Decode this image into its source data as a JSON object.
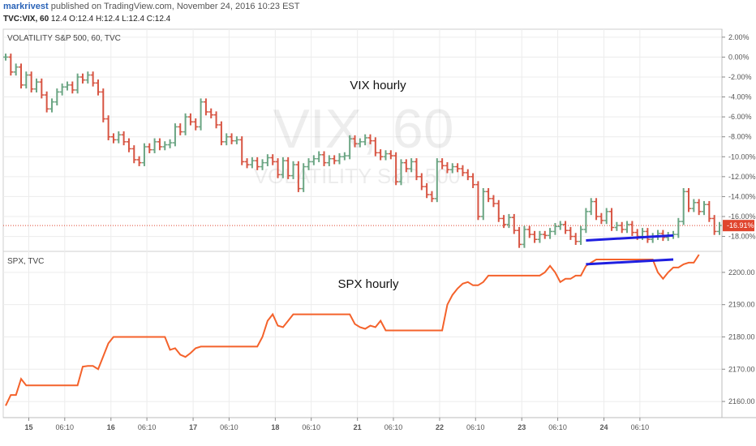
{
  "header": {
    "user": "markrivest",
    "published_text": "published on TradingView.com, November 24, 2016 10:23 EST",
    "symbol": "TVC:VIX, 60",
    "ohlc": "12.4 O:12.4 H:12.4 L:12.4 C:12.4"
  },
  "colors": {
    "up": "#6ba583",
    "down": "#d75442",
    "spx_line": "#f4622b",
    "trend_line": "#1f1fe0",
    "price_tag": "#e0452e"
  },
  "chart_data": [
    {
      "type": "candlestick",
      "pane_title": "VOLATILITY S&P 500, 60, TVC",
      "watermark": "VIX, 60",
      "watermark_sub": "VOLATILITY S&P 500",
      "annotation": "VIX hourly",
      "y_axis_ticks": [
        "2.00%",
        "0.00%",
        "-2.00%",
        "-4.00%",
        "-6.00%",
        "-8.00%",
        "-10.00%",
        "-12.00%",
        "-14.00%",
        "-16.00%",
        "-18.00%"
      ],
      "ylim": [
        -19.5,
        2.8
      ],
      "last_value_label": "-16.91%",
      "last_value": -16.91,
      "close_pct": [
        0.0,
        -1.5,
        -1.0,
        -2.8,
        -1.8,
        -3.2,
        -2.5,
        -3.8,
        -5.2,
        -4.5,
        -3.5,
        -3.0,
        -2.8,
        -3.3,
        -2.0,
        -2.3,
        -1.8,
        -2.6,
        -3.5,
        -6.2,
        -8.0,
        -8.3,
        -7.8,
        -8.5,
        -9.2,
        -10.3,
        -10.6,
        -9.0,
        -9.3,
        -8.5,
        -9.0,
        -8.8,
        -8.6,
        -7.0,
        -7.5,
        -6.0,
        -6.5,
        -7.0,
        -4.5,
        -5.5,
        -5.8,
        -6.8,
        -8.5,
        -8.0,
        -8.4,
        -8.3,
        -10.5,
        -10.8,
        -10.4,
        -11.0,
        -10.6,
        -10.1,
        -10.5,
        -11.8,
        -10.4,
        -11.9,
        -10.8,
        -13.2,
        -11.0,
        -10.5,
        -10.2,
        -9.8,
        -10.6,
        -10.2,
        -10.4,
        -10.0,
        -9.9,
        -8.2,
        -8.7,
        -8.5,
        -8.1,
        -8.4,
        -9.6,
        -10.0,
        -9.7,
        -9.9,
        -12.5,
        -10.6,
        -11.2,
        -10.5,
        -12.0,
        -13.0,
        -13.8,
        -14.2,
        -10.5,
        -10.9,
        -11.3,
        -11.0,
        -11.2,
        -11.6,
        -12.0,
        -12.8,
        -16.0,
        -13.5,
        -14.2,
        -14.7,
        -16.2,
        -16.8,
        -16.1,
        -17.4,
        -18.8,
        -17.3,
        -17.8,
        -18.3,
        -17.8,
        -17.9,
        -17.5,
        -17.0,
        -16.8,
        -17.4,
        -18.0,
        -18.5,
        -17.3,
        -15.5,
        -14.5,
        -16.0,
        -16.4,
        -15.5,
        -17.1,
        -16.9,
        -17.3,
        -16.8,
        -17.6,
        -18.0,
        -17.5,
        -18.3,
        -18.0,
        -17.7,
        -18.1,
        -17.9,
        -17.8,
        -16.5,
        -13.5,
        -15.2,
        -14.6,
        -15.5,
        -14.8,
        -16.2,
        -17.5,
        -16.9
      ],
      "trendline": {
        "from": [
          113,
          -18.4
        ],
        "to": [
          130,
          -17.9
        ]
      }
    },
    {
      "type": "line",
      "pane_title": "SPX, TVC",
      "annotation": "SPX hourly",
      "y_axis_ticks": [
        "2160.00",
        "2170.00",
        "2180.00",
        "2190.00",
        "2200.00"
      ],
      "ylim": [
        2155.0,
        2206.5
      ],
      "values": [
        2158.7,
        2162.0,
        2162.0,
        2167.0,
        2165.0,
        2165.0,
        2165.0,
        2165.0,
        2165.0,
        2165.0,
        2165.0,
        2165.0,
        2165.0,
        2165.0,
        2165.0,
        2170.8,
        2171.0,
        2171.0,
        2170.0,
        2174.0,
        2178.0,
        2180.0,
        2180.0,
        2180.0,
        2180.0,
        2180.0,
        2180.0,
        2180.0,
        2180.0,
        2180.0,
        2180.0,
        2180.0,
        2176.0,
        2176.5,
        2174.5,
        2173.8,
        2175.0,
        2176.5,
        2177.0,
        2177.0,
        2177.0,
        2177.0,
        2177.0,
        2177.0,
        2177.0,
        2177.0,
        2177.0,
        2177.0,
        2177.0,
        2177.0,
        2180.0,
        2185.0,
        2187.0,
        2183.5,
        2183.0,
        2185.0,
        2187.0,
        2187.0,
        2187.0,
        2187.0,
        2187.0,
        2187.0,
        2187.0,
        2187.0,
        2187.0,
        2187.0,
        2187.0,
        2187.0,
        2184.0,
        2183.0,
        2182.5,
        2183.5,
        2183.0,
        2185.0,
        2182.0,
        2182.0,
        2182.0,
        2182.0,
        2182.0,
        2182.0,
        2182.0,
        2182.0,
        2182.0,
        2182.0,
        2182.0,
        2182.0,
        2190.0,
        2193.0,
        2195.0,
        2196.5,
        2197.0,
        2196.0,
        2196.0,
        2197.0,
        2199.0,
        2199.0,
        2199.0,
        2199.0,
        2199.0,
        2199.0,
        2199.0,
        2199.0,
        2199.0,
        2199.0,
        2199.0,
        2200.0,
        2202.0,
        2200.0,
        2197.0,
        2198.0,
        2198.0,
        2199.0,
        2199.0,
        2202.0,
        2203.0,
        2204.0,
        2204.0,
        2204.0,
        2204.0,
        2204.0,
        2204.0,
        2204.0,
        2204.0,
        2204.0,
        2204.0,
        2204.0,
        2204.0,
        2200.0,
        2198.0,
        2200.0,
        2201.5,
        2201.5,
        2202.5,
        2203.0,
        2203.0,
        2205.5
      ],
      "trendline": {
        "from": [
          113,
          2202.5
        ],
        "to": [
          130,
          2204.0
        ]
      }
    }
  ],
  "x_axis_labels": [
    {
      "text": "15",
      "i": 4.5
    },
    {
      "text": "06:10",
      "i": 11.5
    },
    {
      "text": "16",
      "i": 20.5
    },
    {
      "text": "06:10",
      "i": 27.5
    },
    {
      "text": "17",
      "i": 36.5
    },
    {
      "text": "06:10",
      "i": 43.5
    },
    {
      "text": "18",
      "i": 52.5
    },
    {
      "text": "06:10",
      "i": 59.5
    },
    {
      "text": "21",
      "i": 68.5
    },
    {
      "text": "06:10",
      "i": 75.5
    },
    {
      "text": "22",
      "i": 84.5
    },
    {
      "text": "06:10",
      "i": 91.5
    },
    {
      "text": "23",
      "i": 100.5
    },
    {
      "text": "06:10",
      "i": 107.5
    },
    {
      "text": "24",
      "i": 116.5
    },
    {
      "text": "06:10",
      "i": 123.5
    }
  ]
}
